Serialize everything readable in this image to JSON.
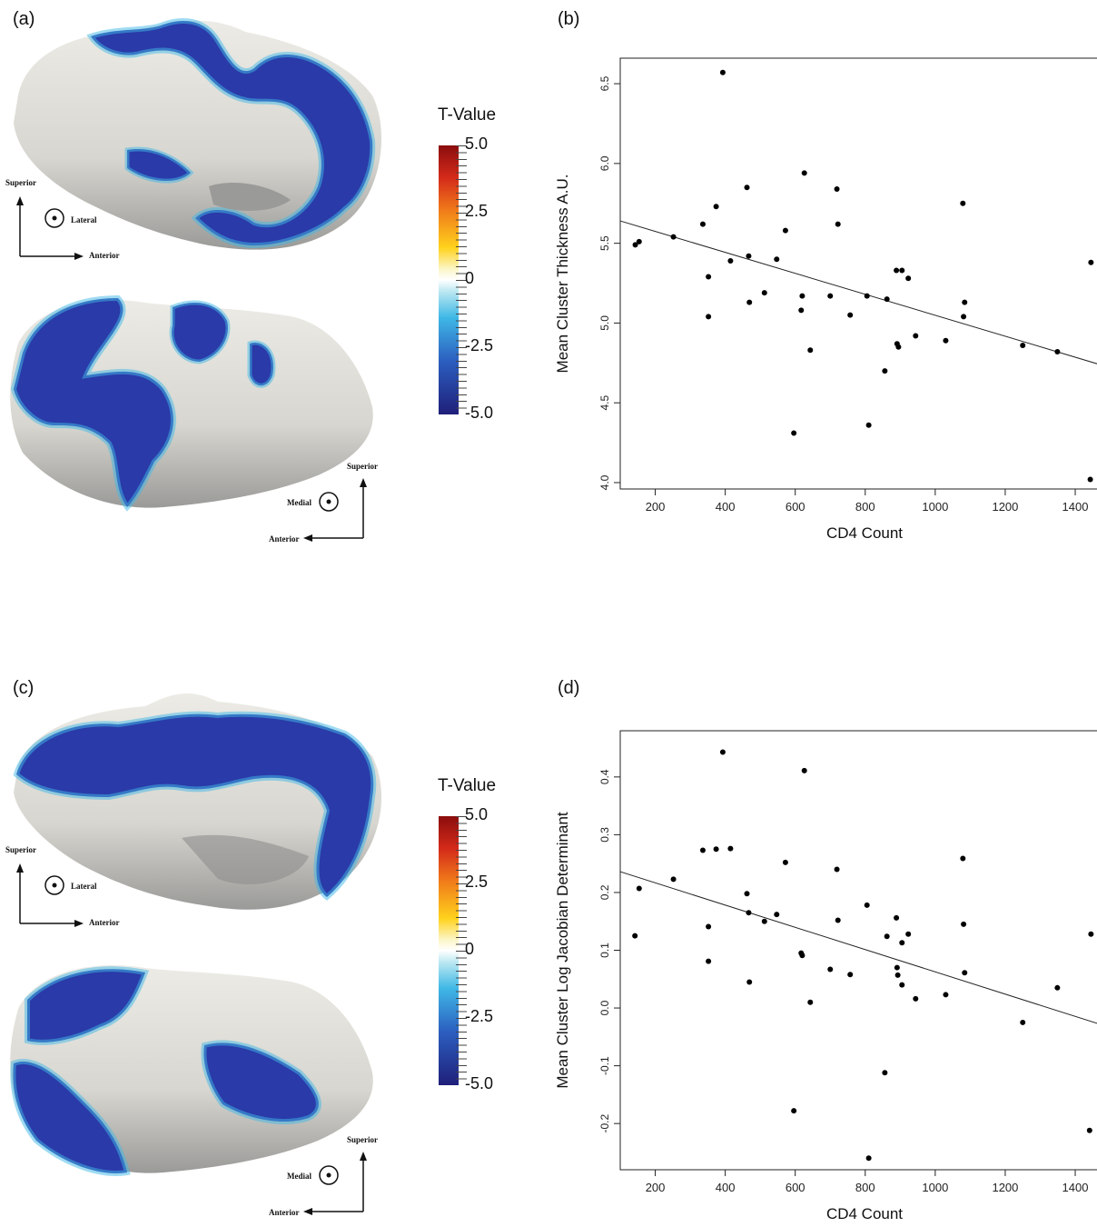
{
  "panels": {
    "a": "(a)",
    "b": "(b)",
    "c": "(c)",
    "d": "(d)"
  },
  "orientation": {
    "superior": "Superior",
    "lateral": "Lateral",
    "anterior": "Anterior",
    "medial": "Medial"
  },
  "colorbar": {
    "title": "T-Value",
    "ticks": [
      "5.0",
      "2.5",
      "0",
      "-2.5",
      "-5.0"
    ],
    "colors": [
      "#8b0d0d",
      "#ffd21c",
      "#ffffff",
      "#3fb8e6",
      "#1f1f7a"
    ]
  },
  "surface_colors": {
    "tissue": "#e3e1dc",
    "shadow": "#8d8d8d",
    "cluster": "#2a3aa8",
    "edge": "#3fb8e6"
  },
  "chart_data": [
    {
      "type": "scatter",
      "xlabel": "CD4 Count",
      "ylabel": "Mean Cluster Thickness A.U.",
      "xlim": [
        100,
        1470
      ],
      "ylim": [
        3.96,
        6.66
      ],
      "xticks": [
        "200",
        "400",
        "600",
        "800",
        "1000",
        "1200",
        "1400"
      ],
      "yticks": [
        "4.0",
        "4.5",
        "5.0",
        "5.5",
        "6.0",
        "6.5"
      ],
      "fit_line": {
        "x": [
          100,
          1470
        ],
        "y": [
          5.64,
          4.74
        ]
      },
      "points": [
        [
          143,
          5.49
        ],
        [
          154,
          5.51
        ],
        [
          252,
          5.54
        ],
        [
          336,
          5.62
        ],
        [
          352,
          5.29
        ],
        [
          352,
          5.04
        ],
        [
          374,
          5.73
        ],
        [
          393,
          6.57
        ],
        [
          415,
          5.39
        ],
        [
          462,
          5.85
        ],
        [
          467,
          5.42
        ],
        [
          469,
          5.13
        ],
        [
          512,
          5.19
        ],
        [
          547,
          5.4
        ],
        [
          572,
          5.58
        ],
        [
          596,
          4.31
        ],
        [
          617,
          5.08
        ],
        [
          620,
          5.17
        ],
        [
          626,
          5.94
        ],
        [
          643,
          4.83
        ],
        [
          700,
          5.17
        ],
        [
          719,
          5.84
        ],
        [
          722,
          5.62
        ],
        [
          757,
          5.05
        ],
        [
          805,
          5.17
        ],
        [
          810,
          4.36
        ],
        [
          856,
          4.7
        ],
        [
          862,
          5.15
        ],
        [
          889,
          5.33
        ],
        [
          891,
          4.87
        ],
        [
          895,
          4.85
        ],
        [
          905,
          5.33
        ],
        [
          923,
          5.28
        ],
        [
          944,
          4.92
        ],
        [
          1030,
          4.89
        ],
        [
          1079,
          5.75
        ],
        [
          1081,
          5.04
        ],
        [
          1084,
          5.13
        ],
        [
          1250,
          4.86
        ],
        [
          1349,
          4.82
        ],
        [
          1443,
          4.02
        ],
        [
          1445,
          5.38
        ]
      ]
    },
    {
      "type": "scatter",
      "xlabel": "CD4 Count",
      "ylabel": "Mean Cluster Log Jacobian Determinant",
      "xlim": [
        100,
        1470
      ],
      "ylim": [
        -0.28,
        0.48
      ],
      "xticks": [
        "200",
        "400",
        "600",
        "800",
        "1000",
        "1200",
        "1400"
      ],
      "yticks": [
        "-0.2",
        "-0.1",
        "0.0",
        "0.1",
        "0.2",
        "0.3",
        "0.4"
      ],
      "fit_line": {
        "x": [
          100,
          1470
        ],
        "y": [
          0.236,
          -0.028
        ]
      },
      "points": [
        [
          142,
          0.125
        ],
        [
          154,
          0.207
        ],
        [
          252,
          0.223
        ],
        [
          336,
          0.273
        ],
        [
          352,
          0.141
        ],
        [
          352,
          0.081
        ],
        [
          374,
          0.275
        ],
        [
          393,
          0.443
        ],
        [
          415,
          0.276
        ],
        [
          462,
          0.198
        ],
        [
          467,
          0.165
        ],
        [
          469,
          0.045
        ],
        [
          512,
          0.15
        ],
        [
          547,
          0.162
        ],
        [
          572,
          0.252
        ],
        [
          596,
          -0.178
        ],
        [
          617,
          0.095
        ],
        [
          620,
          0.091
        ],
        [
          626,
          0.411
        ],
        [
          643,
          0.01
        ],
        [
          700,
          0.067
        ],
        [
          719,
          0.24
        ],
        [
          722,
          0.152
        ],
        [
          757,
          0.058
        ],
        [
          805,
          0.178
        ],
        [
          810,
          -0.26
        ],
        [
          856,
          -0.112
        ],
        [
          862,
          0.124
        ],
        [
          889,
          0.156
        ],
        [
          891,
          0.07
        ],
        [
          893,
          0.057
        ],
        [
          905,
          0.113
        ],
        [
          905,
          0.04
        ],
        [
          923,
          0.128
        ],
        [
          944,
          0.016
        ],
        [
          1030,
          0.023
        ],
        [
          1079,
          0.259
        ],
        [
          1081,
          0.145
        ],
        [
          1084,
          0.061
        ],
        [
          1250,
          -0.025
        ],
        [
          1349,
          0.035
        ],
        [
          1441,
          -0.212
        ],
        [
          1445,
          0.128
        ]
      ]
    }
  ]
}
